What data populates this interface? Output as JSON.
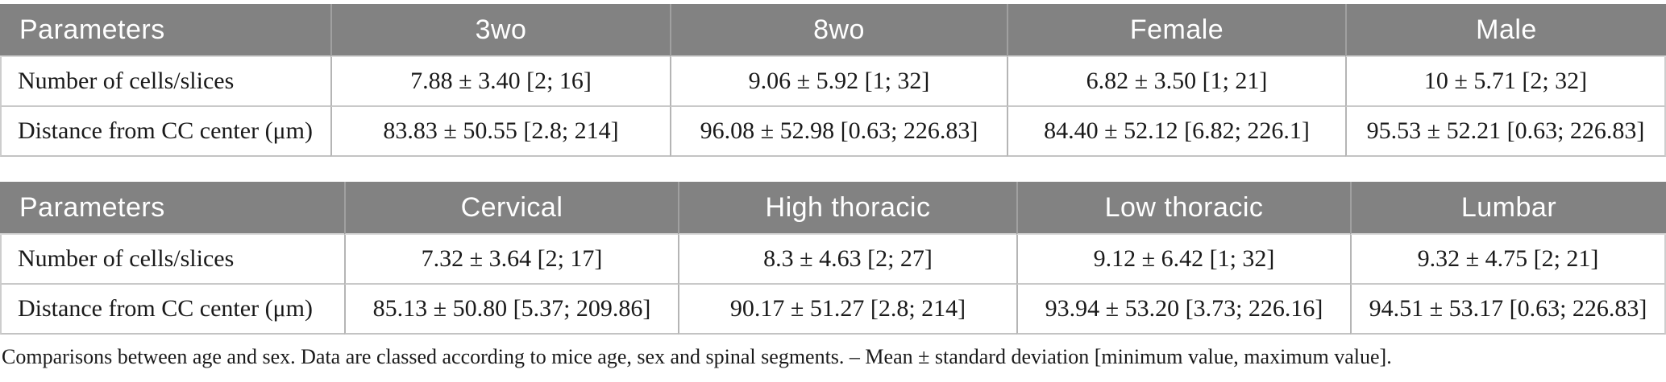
{
  "caption": "Comparisons between age and sex. Data are classed according to mice age, sex and spinal segments. – Mean ± standard deviation [minimum value, maximum value].",
  "colors": {
    "header_bg": "#828282",
    "header_text": "#ffffff",
    "header_divider": "#a0a0a0",
    "body_divider": "#b5b5b5",
    "row_border": "#c9c9c9",
    "body_text": "#1a1a1a"
  },
  "tables": [
    {
      "name": "age-and-sex",
      "columns": [
        "Parameters",
        "3wo",
        "8wo",
        "Female",
        "Male"
      ],
      "rows": [
        {
          "label": "Number of cells/slices",
          "values": [
            "7.88 ± 3.40 [2; 16]",
            "9.06 ± 5.92 [1; 32]",
            "6.82 ± 3.50 [1; 21]",
            "10 ± 5.71 [2; 32]"
          ]
        },
        {
          "label": "Distance from CC center (μm)",
          "values": [
            "83.83 ± 50.55 [2.8; 214]",
            "96.08 ± 52.98 [0.63; 226.83]",
            "84.40 ± 52.12 [6.82; 226.1]",
            "95.53 ± 52.21 [0.63; 226.83]"
          ]
        }
      ]
    },
    {
      "name": "spinal-segments",
      "columns": [
        "Parameters",
        "Cervical",
        "High thoracic",
        "Low thoracic",
        "Lumbar"
      ],
      "rows": [
        {
          "label": "Number of cells/slices",
          "values": [
            "7.32 ± 3.64 [2; 17]",
            "8.3 ± 4.63 [2; 27]",
            "9.12 ± 6.42 [1; 32]",
            "9.32 ± 4.75 [2; 21]"
          ]
        },
        {
          "label": "Distance from CC center (μm)",
          "values": [
            "85.13 ± 50.80 [5.37; 209.86]",
            "90.17 ± 51.27 [2.8; 214]",
            "93.94 ± 53.20 [3.73; 226.16]",
            "94.51 ± 53.17 [0.63; 226.83]"
          ]
        }
      ]
    }
  ]
}
